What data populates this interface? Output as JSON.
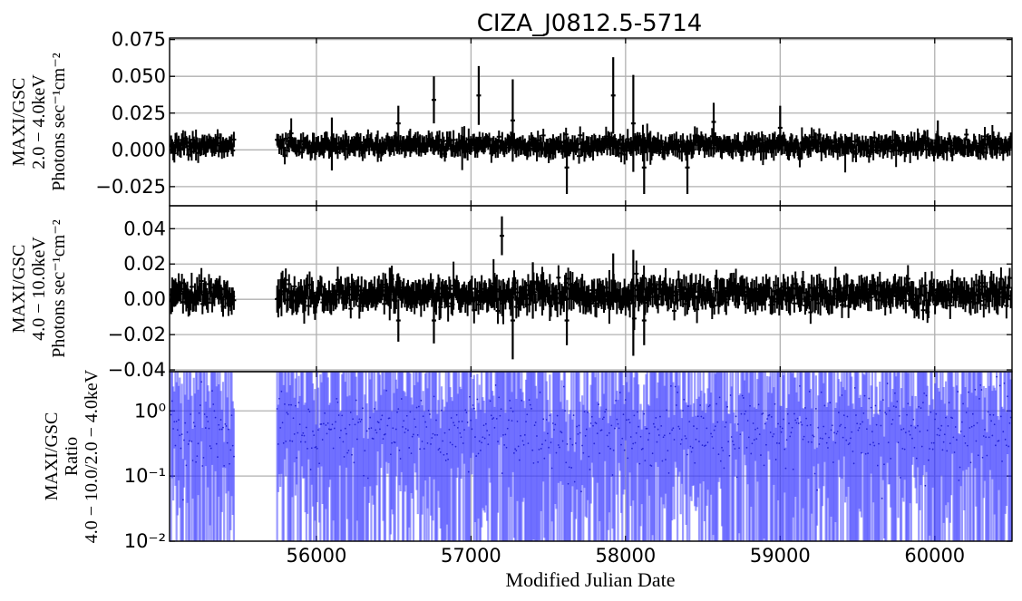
{
  "title": "CIZA_J0812.5-5714",
  "xlabel": "Modified Julian Date",
  "chart_data": [
    {
      "type": "line",
      "panel": "top",
      "ylabel_lines": [
        "MAXI/GSC",
        "2.0 − 4.0keV",
        "Photons sec⁻¹cm⁻²"
      ],
      "xlim": [
        55050,
        60500
      ],
      "ylim": [
        -0.038,
        0.076
      ],
      "yticks": [
        -0.025,
        0.0,
        0.025,
        0.05,
        0.075
      ],
      "ytick_labels": [
        "−0.025",
        "0.000",
        "0.025",
        "0.050",
        "0.075"
      ],
      "grid": true,
      "color": "#000000",
      "notable_points": [
        {
          "x": 56100,
          "y": 0.004,
          "err": 0.018
        },
        {
          "x": 56530,
          "y": 0.018,
          "err": 0.012
        },
        {
          "x": 56760,
          "y": 0.034,
          "err": 0.016
        },
        {
          "x": 57050,
          "y": 0.037,
          "err": 0.02
        },
        {
          "x": 57270,
          "y": 0.02,
          "err": 0.028
        },
        {
          "x": 57620,
          "y": -0.012,
          "err": 0.018
        },
        {
          "x": 57920,
          "y": 0.037,
          "err": 0.026
        },
        {
          "x": 58050,
          "y": 0.018,
          "err": 0.033
        },
        {
          "x": 58120,
          "y": -0.012,
          "err": 0.018
        },
        {
          "x": 58400,
          "y": -0.012,
          "err": 0.018
        },
        {
          "x": 58570,
          "y": 0.019,
          "err": 0.013
        },
        {
          "x": 59000,
          "y": 0.015,
          "err": 0.015
        },
        {
          "x": 60020,
          "y": 0.007,
          "err": 0.013
        }
      ]
    },
    {
      "type": "line",
      "panel": "middle",
      "ylabel_lines": [
        "MAXI/GSC",
        "4.0 − 10.0keV",
        "Photons sec⁻¹cm⁻²"
      ],
      "xlim": [
        55050,
        60500
      ],
      "ylim": [
        -0.041,
        0.053
      ],
      "yticks": [
        -0.04,
        -0.02,
        0.0,
        0.02,
        0.04
      ],
      "ytick_labels": [
        "−0.04",
        "−0.02",
        "0.00",
        "0.02",
        "0.04"
      ],
      "grid": true,
      "color": "#000000",
      "notable_points": [
        {
          "x": 56530,
          "y": -0.012,
          "err": 0.012
        },
        {
          "x": 56760,
          "y": -0.012,
          "err": 0.013
        },
        {
          "x": 57200,
          "y": 0.036,
          "err": 0.011
        },
        {
          "x": 57270,
          "y": -0.012,
          "err": 0.022
        },
        {
          "x": 57400,
          "y": 0.005,
          "err": 0.016
        },
        {
          "x": 57620,
          "y": -0.012,
          "err": 0.014
        },
        {
          "x": 57920,
          "y": 0.01,
          "err": 0.016
        },
        {
          "x": 58050,
          "y": -0.002,
          "err": 0.03
        },
        {
          "x": 58120,
          "y": -0.012,
          "err": 0.014
        }
      ]
    },
    {
      "type": "scatter",
      "panel": "bottom",
      "ylabel_lines": [
        "MAXI/GSC",
        "Ratio",
        "4.0 − 10.0/2.0 − 4.0keV"
      ],
      "xlim": [
        55050,
        60500
      ],
      "ylim": [
        0.01,
        4.0
      ],
      "yscale": "log",
      "yticks": [
        0.01,
        0.1,
        1.0
      ],
      "ytick_labels": [
        "10⁻²",
        "10⁻¹",
        "10⁰"
      ],
      "xticks": [
        56000,
        57000,
        58000,
        59000,
        60000
      ],
      "xtick_labels": [
        "56000",
        "57000",
        "58000",
        "59000",
        "60000"
      ],
      "grid": true,
      "color": "#3333ff"
    }
  ]
}
